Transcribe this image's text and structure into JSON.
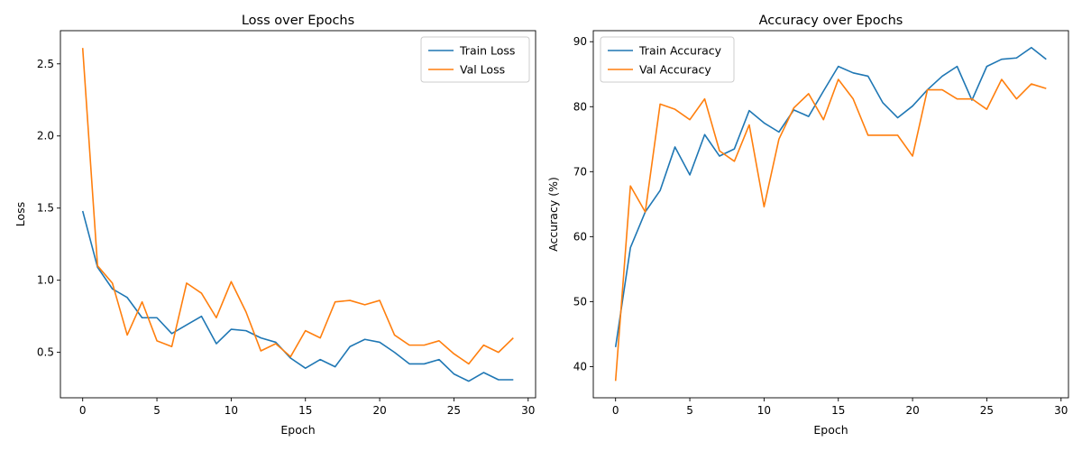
{
  "chart_data": [
    {
      "type": "line",
      "title": "Loss over Epochs",
      "xlabel": "Epoch",
      "ylabel": "Loss",
      "xlim": [
        -1.5,
        30.5
      ],
      "ylim": [
        0.185,
        2.73
      ],
      "xticks": [
        0,
        5,
        10,
        15,
        20,
        25,
        30
      ],
      "yticks": [
        0.5,
        1.0,
        1.5,
        2.0,
        2.5
      ],
      "ytick_labels": [
        "0.5",
        "1.0",
        "1.5",
        "2.0",
        "2.5"
      ],
      "legend": "top-right",
      "grid": false,
      "x": [
        0,
        1,
        2,
        3,
        4,
        5,
        6,
        7,
        8,
        9,
        10,
        11,
        12,
        13,
        14,
        15,
        16,
        17,
        18,
        19,
        20,
        21,
        22,
        23,
        24,
        25,
        26,
        27,
        28,
        29
      ],
      "series": [
        {
          "name": "Train Loss",
          "color": "#1f77b4",
          "values": [
            1.48,
            1.09,
            0.94,
            0.88,
            0.74,
            0.74,
            0.63,
            0.69,
            0.75,
            0.56,
            0.66,
            0.65,
            0.6,
            0.57,
            0.46,
            0.39,
            0.45,
            0.4,
            0.54,
            0.59,
            0.57,
            0.5,
            0.42,
            0.42,
            0.45,
            0.35,
            0.3,
            0.36,
            0.31,
            0.31
          ]
        },
        {
          "name": "Val Loss",
          "color": "#ff7f0e",
          "values": [
            2.61,
            1.1,
            0.98,
            0.62,
            0.85,
            0.58,
            0.54,
            0.98,
            0.91,
            0.74,
            0.99,
            0.78,
            0.51,
            0.56,
            0.47,
            0.65,
            0.6,
            0.85,
            0.86,
            0.83,
            0.86,
            0.62,
            0.55,
            0.55,
            0.58,
            0.49,
            0.42,
            0.55,
            0.5,
            0.6
          ]
        }
      ]
    },
    {
      "type": "line",
      "title": "Accuracy over Epochs",
      "xlabel": "Epoch",
      "ylabel": "Accuracy (%)",
      "xlim": [
        -1.5,
        30.5
      ],
      "ylim": [
        35.2,
        91.7
      ],
      "xticks": [
        0,
        5,
        10,
        15,
        20,
        25,
        30
      ],
      "yticks": [
        40,
        50,
        60,
        70,
        80,
        90
      ],
      "ytick_labels": [
        "40",
        "50",
        "60",
        "70",
        "80",
        "90"
      ],
      "legend": "top-left",
      "grid": false,
      "x": [
        0,
        1,
        2,
        3,
        4,
        5,
        6,
        7,
        8,
        9,
        10,
        11,
        12,
        13,
        14,
        15,
        16,
        17,
        18,
        19,
        20,
        21,
        22,
        23,
        24,
        25,
        26,
        27,
        28,
        29
      ],
      "series": [
        {
          "name": "Train Accuracy",
          "color": "#1f77b4",
          "values": [
            43.0,
            58.3,
            63.8,
            67.1,
            73.8,
            69.5,
            75.7,
            72.4,
            73.5,
            79.4,
            77.5,
            76.1,
            79.5,
            78.5,
            82.4,
            86.2,
            85.2,
            84.7,
            80.6,
            78.3,
            80.1,
            82.6,
            84.7,
            86.2,
            81.0,
            86.2,
            87.3,
            87.5,
            89.1,
            87.3
          ]
        },
        {
          "name": "Val Accuracy",
          "color": "#ff7f0e",
          "values": [
            37.8,
            67.8,
            63.8,
            80.4,
            79.6,
            78.0,
            81.2,
            73.2,
            71.6,
            77.2,
            64.6,
            75.0,
            79.8,
            82.0,
            78.0,
            84.2,
            81.2,
            75.6,
            75.6,
            75.6,
            72.4,
            82.6,
            82.6,
            81.2,
            81.2,
            79.6,
            84.2,
            81.2,
            83.5,
            82.8
          ]
        }
      ]
    }
  ]
}
